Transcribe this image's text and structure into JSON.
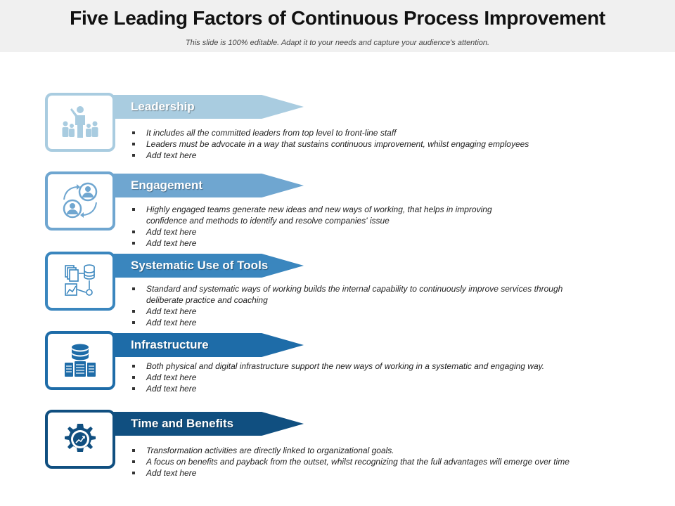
{
  "header": {
    "title": "Five Leading Factors of Continuous Process Improvement",
    "subtitle": "This slide is 100% editable. Adapt it to your needs and capture your audience's attention."
  },
  "factors": [
    {
      "title": "Leadership",
      "icon": "leader-group-icon",
      "color": "#a9cce0",
      "bullets": [
        "It includes all the committed leaders from top level to front-line staff",
        "Leaders must be advocate  in a way that sustains continuous  improvement,  whilst engaging  employees",
        "Add text here"
      ]
    },
    {
      "title": "Engagement",
      "icon": "people-exchange-icon",
      "color": "#6fa6d0",
      "bullets": [
        "Highly engaged  teams generate new ideas and new ways of working, that helps in improving",
        "confidence  and methods to identify and resolve companies'  issue",
        "Add text here",
        "Add text here"
      ]
    },
    {
      "title": "Systematic Use of Tools",
      "icon": "tools-documents-icon",
      "color": "#3a86be",
      "bullets": [
        "Standard and systematic ways of working builds the internal capability to continuously improve services through",
        "deliberate practice and coaching",
        "Add text here",
        "Add text here"
      ]
    },
    {
      "title": "Infrastructure",
      "icon": "database-servers-icon",
      "color": "#1e6ca8",
      "bullets": [
        "Both physical and digital infrastructure support  the new ways of working in a systematic and engaging way.",
        "Add text here",
        "Add text here"
      ]
    },
    {
      "title": "Time and Benefits",
      "icon": "gear-growth-icon",
      "color": "#104f80",
      "bullets": [
        "Transformation activities are directly linked to organizational  goals.",
        "A focus on benefits and payback from the outset, whilst recognizing  that the full advantages  will emerge over time",
        "Add text here"
      ]
    }
  ]
}
